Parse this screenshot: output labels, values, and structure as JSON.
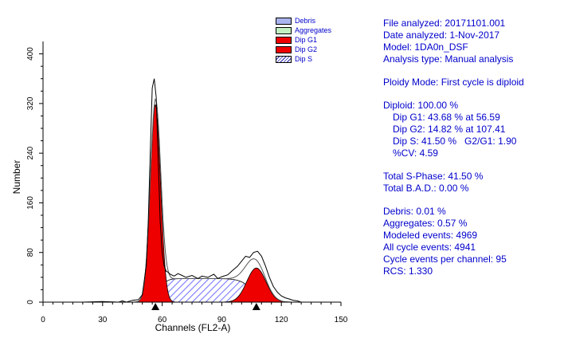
{
  "chart_data": {
    "type": "area",
    "xlabel": "Channels (FL2-A)",
    "ylabel": "Number",
    "xlim": [
      0,
      150
    ],
    "ylim": [
      0,
      420
    ],
    "xticks": [
      0,
      30,
      60,
      90,
      120,
      150
    ],
    "yticks": [
      0,
      80,
      160,
      240,
      320,
      400
    ],
    "legend_position": "top-right",
    "legend": [
      {
        "name": "Debris",
        "color": "#aab4ee"
      },
      {
        "name": "Aggregates",
        "color": "#c2f0c2"
      },
      {
        "name": "Dip G1",
        "color": "#ee0000"
      },
      {
        "name": "Dip G2",
        "color": "#ee0000"
      },
      {
        "name": "Dip S",
        "color": "#8888ff",
        "pattern": "hatch"
      }
    ],
    "peak_markers": [
      56.59,
      107.41
    ],
    "dip_g1": {
      "mean": 56.59,
      "sd": 2.6,
      "peak": 318
    },
    "dip_g2": {
      "mean": 107.41,
      "sd": 4.8,
      "peak": 55
    },
    "dip_s": {
      "start": 56.59,
      "end": 107.41,
      "level": 38
    },
    "histogram": [
      [
        0,
        0
      ],
      [
        10,
        0
      ],
      [
        20,
        0
      ],
      [
        30,
        1
      ],
      [
        38,
        0
      ],
      [
        40,
        2
      ],
      [
        42,
        0
      ],
      [
        45,
        3
      ],
      [
        48,
        4
      ],
      [
        50,
        12
      ],
      [
        52,
        60
      ],
      [
        53,
        130
      ],
      [
        54,
        240
      ],
      [
        55,
        345
      ],
      [
        56,
        360
      ],
      [
        57,
        330
      ],
      [
        58,
        230
      ],
      [
        59,
        130
      ],
      [
        60,
        80
      ],
      [
        61,
        58
      ],
      [
        62,
        50
      ],
      [
        63,
        48
      ],
      [
        64,
        45
      ],
      [
        66,
        42
      ],
      [
        68,
        46
      ],
      [
        70,
        43
      ],
      [
        72,
        40
      ],
      [
        75,
        43
      ],
      [
        78,
        38
      ],
      [
        80,
        42
      ],
      [
        83,
        40
      ],
      [
        86,
        45
      ],
      [
        88,
        38
      ],
      [
        90,
        41
      ],
      [
        93,
        44
      ],
      [
        95,
        50
      ],
      [
        98,
        58
      ],
      [
        100,
        66
      ],
      [
        102,
        74
      ],
      [
        104,
        72
      ],
      [
        106,
        80
      ],
      [
        108,
        82
      ],
      [
        110,
        74
      ],
      [
        112,
        58
      ],
      [
        114,
        40
      ],
      [
        116,
        25
      ],
      [
        118,
        16
      ],
      [
        120,
        10
      ],
      [
        122,
        7
      ],
      [
        124,
        5
      ],
      [
        126,
        3
      ],
      [
        128,
        2
      ],
      [
        130,
        0
      ],
      [
        150,
        0
      ]
    ]
  },
  "info": {
    "file": "File analyzed: 20171101.001",
    "date": "Date analyzed: 1-Nov-2017",
    "model": "Model: 1DA0n_DSF",
    "analysis_type": "Analysis type: Manual analysis",
    "ploidy_mode": "Ploidy Mode: First cycle is diploid",
    "diploid": "Diploid: 100.00 %",
    "dip_g1": "Dip G1: 43.68 % at 56.59",
    "dip_g2": "Dip G2: 14.82 % at 107.41",
    "dip_s": "Dip S: 41.50 %   G2/G1: 1.90",
    "cv": "%CV: 4.59",
    "total_s_phase": "Total S-Phase: 41.50 %",
    "total_bad": "Total B.A.D.: 0.00 %",
    "debris": "Debris: 0.01 %",
    "aggregates": "Aggregates: 0.57 %",
    "modeled_events": "Modeled events: 4969",
    "all_cycle_events": "All cycle events: 4941",
    "cycle_events_per_channel": "Cycle events per channel: 95",
    "rcs": "RCS: 1.330"
  }
}
